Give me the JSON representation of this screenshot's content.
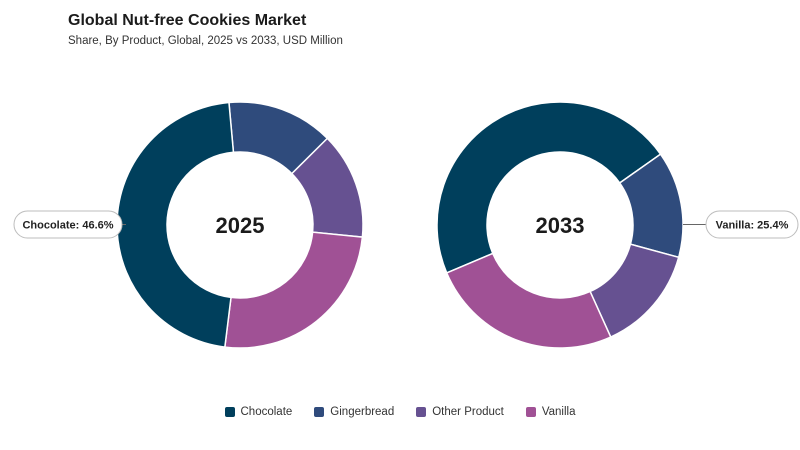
{
  "header": {
    "title": "Global Nut-free Cookies Market",
    "subtitle": "Share, By Product, Global, 2025 vs 2033, USD Million"
  },
  "colors": {
    "Chocolate": "#003f5c",
    "Gingerbread": "#2f4b7c",
    "Other Product": "#665191",
    "Vanilla": "#a05195"
  },
  "chart_data": [
    {
      "type": "pie",
      "center_label": "2025",
      "categories": [
        "Chocolate",
        "Gingerbread",
        "Other Product",
        "Vanilla"
      ],
      "values": [
        46.6,
        14.0,
        14.0,
        25.4
      ],
      "callout": {
        "text": "Chocolate: 46.6%"
      }
    },
    {
      "type": "pie",
      "center_label": "2033",
      "categories": [
        "Chocolate",
        "Gingerbread",
        "Other Product",
        "Vanilla"
      ],
      "values": [
        46.6,
        14.0,
        14.0,
        25.4
      ],
      "callout": {
        "text": "Vanilla: 25.4%"
      }
    }
  ],
  "legend": {
    "items": [
      "Chocolate",
      "Gingerbread",
      "Other Product",
      "Vanilla"
    ]
  }
}
